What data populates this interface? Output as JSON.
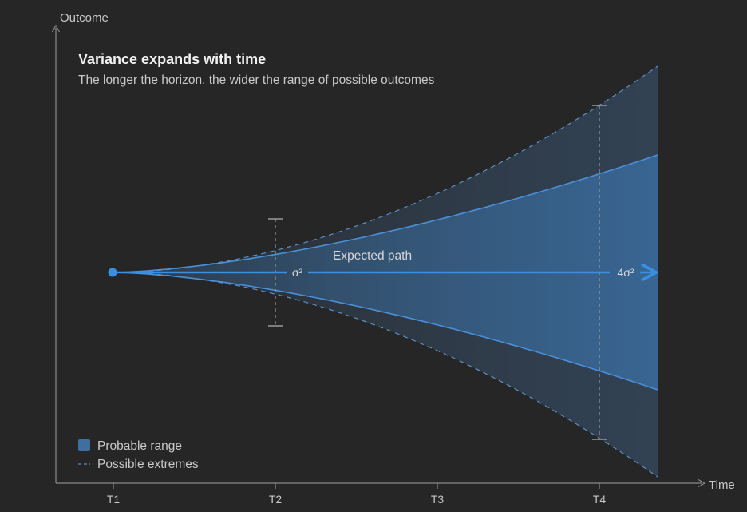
{
  "chart_data": {
    "type": "area",
    "title": "Variance expands with time",
    "subtitle": "The longer the horizon, the wider the range of possible outcomes",
    "xlabel": "Time",
    "ylabel": "Outcome",
    "x_ticks": [
      "T1",
      "T2",
      "T3",
      "T4"
    ],
    "expected_path_label": "Expected path",
    "annotations": [
      {
        "label": "σ²",
        "at": "T2"
      },
      {
        "label": "4σ²",
        "at": "T4"
      }
    ],
    "legend": [
      {
        "label": "Probable range",
        "style": "filled-box"
      },
      {
        "label": "Possible extremes",
        "style": "dashed-line"
      }
    ],
    "legend_position": "bottom-left"
  },
  "colors": {
    "background": "#262626",
    "axis": "#8a8a8a",
    "accent": "#3b8fe0",
    "band_probable": "#3a6fa3",
    "band_extreme": "#2f3e4f",
    "dashed": "#5a8fc8"
  }
}
